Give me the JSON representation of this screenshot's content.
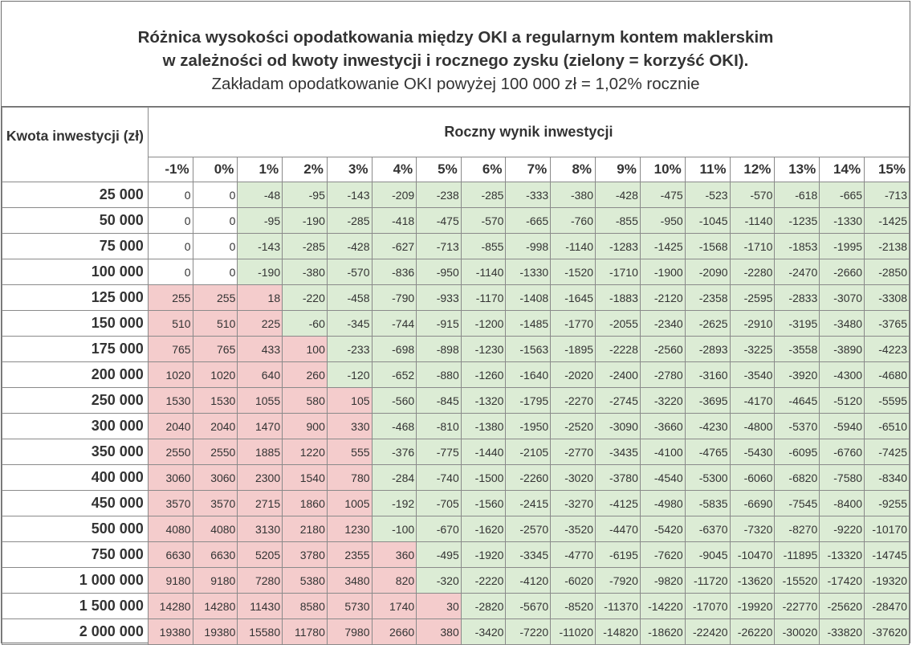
{
  "title": {
    "line1": "Różnica wysokości opodatkowania między OKI a regularnym kontem maklerskim",
    "line2": "w zależności od kwoty inwestycji i rocznego zysku (zielony = korzyść OKI).",
    "line3": "Zakładam opodatkowanie OKI powyżej 100 000 zł = 1,02% rocznie"
  },
  "table": {
    "row_header": "Kwota inwestycji (zł)",
    "col_header": "Roczny wynik inwestycji",
    "columns": [
      "-1%",
      "0%",
      "1%",
      "2%",
      "3%",
      "4%",
      "5%",
      "6%",
      "7%",
      "8%",
      "9%",
      "10%",
      "11%",
      "12%",
      "13%",
      "14%",
      "15%"
    ],
    "colors": {
      "benefit_green": "#dcecd5",
      "loss_red": "#f4cccc",
      "neutral": "#ffffff"
    },
    "rows": [
      {
        "amount": "25 000",
        "values": [
          "0",
          "0",
          "-48",
          "-95",
          "-143",
          "-209",
          "-238",
          "-285",
          "-333",
          "-380",
          "-428",
          "-475",
          "-523",
          "-570",
          "-618",
          "-665",
          "-713"
        ]
      },
      {
        "amount": "50 000",
        "values": [
          "0",
          "0",
          "-95",
          "-190",
          "-285",
          "-418",
          "-475",
          "-570",
          "-665",
          "-760",
          "-855",
          "-950",
          "-1045",
          "-1140",
          "-1235",
          "-1330",
          "-1425"
        ]
      },
      {
        "amount": "75 000",
        "values": [
          "0",
          "0",
          "-143",
          "-285",
          "-428",
          "-627",
          "-713",
          "-855",
          "-998",
          "-1140",
          "-1283",
          "-1425",
          "-1568",
          "-1710",
          "-1853",
          "-1995",
          "-2138"
        ]
      },
      {
        "amount": "100 000",
        "values": [
          "0",
          "0",
          "-190",
          "-380",
          "-570",
          "-836",
          "-950",
          "-1140",
          "-1330",
          "-1520",
          "-1710",
          "-1900",
          "-2090",
          "-2280",
          "-2470",
          "-2660",
          "-2850"
        ]
      },
      {
        "amount": "125 000",
        "values": [
          "255",
          "255",
          "18",
          "-220",
          "-458",
          "-790",
          "-933",
          "-1170",
          "-1408",
          "-1645",
          "-1883",
          "-2120",
          "-2358",
          "-2595",
          "-2833",
          "-3070",
          "-3308"
        ]
      },
      {
        "amount": "150 000",
        "values": [
          "510",
          "510",
          "225",
          "-60",
          "-345",
          "-744",
          "-915",
          "-1200",
          "-1485",
          "-1770",
          "-2055",
          "-2340",
          "-2625",
          "-2910",
          "-3195",
          "-3480",
          "-3765"
        ]
      },
      {
        "amount": "175 000",
        "values": [
          "765",
          "765",
          "433",
          "100",
          "-233",
          "-698",
          "-898",
          "-1230",
          "-1563",
          "-1895",
          "-2228",
          "-2560",
          "-2893",
          "-3225",
          "-3558",
          "-3890",
          "-4223"
        ]
      },
      {
        "amount": "200 000",
        "values": [
          "1020",
          "1020",
          "640",
          "260",
          "-120",
          "-652",
          "-880",
          "-1260",
          "-1640",
          "-2020",
          "-2400",
          "-2780",
          "-3160",
          "-3540",
          "-3920",
          "-4300",
          "-4680"
        ]
      },
      {
        "amount": "250 000",
        "values": [
          "1530",
          "1530",
          "1055",
          "580",
          "105",
          "-560",
          "-845",
          "-1320",
          "-1795",
          "-2270",
          "-2745",
          "-3220",
          "-3695",
          "-4170",
          "-4645",
          "-5120",
          "-5595"
        ]
      },
      {
        "amount": "300 000",
        "values": [
          "2040",
          "2040",
          "1470",
          "900",
          "330",
          "-468",
          "-810",
          "-1380",
          "-1950",
          "-2520",
          "-3090",
          "-3660",
          "-4230",
          "-4800",
          "-5370",
          "-5940",
          "-6510"
        ]
      },
      {
        "amount": "350 000",
        "values": [
          "2550",
          "2550",
          "1885",
          "1220",
          "555",
          "-376",
          "-775",
          "-1440",
          "-2105",
          "-2770",
          "-3435",
          "-4100",
          "-4765",
          "-5430",
          "-6095",
          "-6760",
          "-7425"
        ]
      },
      {
        "amount": "400 000",
        "values": [
          "3060",
          "3060",
          "2300",
          "1540",
          "780",
          "-284",
          "-740",
          "-1500",
          "-2260",
          "-3020",
          "-3780",
          "-4540",
          "-5300",
          "-6060",
          "-6820",
          "-7580",
          "-8340"
        ]
      },
      {
        "amount": "450 000",
        "values": [
          "3570",
          "3570",
          "2715",
          "1860",
          "1005",
          "-192",
          "-705",
          "-1560",
          "-2415",
          "-3270",
          "-4125",
          "-4980",
          "-5835",
          "-6690",
          "-7545",
          "-8400",
          "-9255"
        ]
      },
      {
        "amount": "500 000",
        "values": [
          "4080",
          "4080",
          "3130",
          "2180",
          "1230",
          "-100",
          "-670",
          "-1620",
          "-2570",
          "-3520",
          "-4470",
          "-5420",
          "-6370",
          "-7320",
          "-8270",
          "-9220",
          "-10170"
        ]
      },
      {
        "amount": "750 000",
        "values": [
          "6630",
          "6630",
          "5205",
          "3780",
          "2355",
          "360",
          "-495",
          "-1920",
          "-3345",
          "-4770",
          "-6195",
          "-7620",
          "-9045",
          "-10470",
          "-11895",
          "-13320",
          "-14745"
        ]
      },
      {
        "amount": "1 000 000",
        "values": [
          "9180",
          "9180",
          "7280",
          "5380",
          "3480",
          "820",
          "-320",
          "-2220",
          "-4120",
          "-6020",
          "-7920",
          "-9820",
          "-11720",
          "-13620",
          "-15520",
          "-17420",
          "-19320"
        ]
      },
      {
        "amount": "1 500 000",
        "values": [
          "14280",
          "14280",
          "11430",
          "8580",
          "5730",
          "1740",
          "30",
          "-2820",
          "-5670",
          "-8520",
          "-11370",
          "-14220",
          "-17070",
          "-19920",
          "-22770",
          "-25620",
          "-28470"
        ]
      },
      {
        "amount": "2 000 000",
        "values": [
          "19380",
          "19380",
          "15580",
          "11780",
          "7980",
          "2660",
          "380",
          "-3420",
          "-7220",
          "-11020",
          "-14820",
          "-18620",
          "-22420",
          "-26220",
          "-30020",
          "-33820",
          "-37620"
        ]
      }
    ]
  }
}
